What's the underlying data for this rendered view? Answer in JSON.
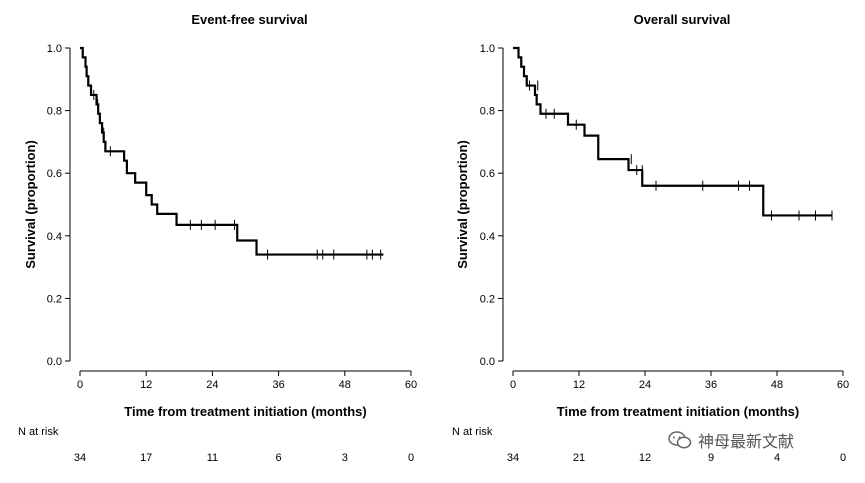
{
  "chart_data": [
    {
      "type": "line",
      "title": "Event-free survival",
      "xlabel": "Time from treatment initiation (months)",
      "ylabel": "Survival (proportion)",
      "xlim": [
        0,
        60
      ],
      "ylim": [
        0,
        1
      ],
      "xticks": [
        0,
        12,
        24,
        36,
        48,
        60
      ],
      "yticks": [
        "0.0",
        "0.2",
        "0.4",
        "0.6",
        "0.8",
        "1.0"
      ],
      "series": [
        {
          "name": "Event-free survival",
          "steps": [
            [
              0,
              1.0
            ],
            [
              0.5,
              0.97
            ],
            [
              1,
              0.94
            ],
            [
              1.2,
              0.91
            ],
            [
              1.5,
              0.88
            ],
            [
              2,
              0.85
            ],
            [
              3,
              0.82
            ],
            [
              3.3,
              0.79
            ],
            [
              3.6,
              0.76
            ],
            [
              4,
              0.73
            ],
            [
              4.3,
              0.7
            ],
            [
              4.6,
              0.67
            ],
            [
              8,
              0.64
            ],
            [
              8.5,
              0.6
            ],
            [
              10,
              0.57
            ],
            [
              12,
              0.53
            ],
            [
              13,
              0.5
            ],
            [
              14,
              0.47
            ],
            [
              17.5,
              0.435
            ],
            [
              28.5,
              0.385
            ],
            [
              32,
              0.34
            ],
            [
              55,
              0.34
            ]
          ],
          "censored": [
            [
              2.5,
              0.85
            ],
            [
              3.2,
              0.82
            ],
            [
              4.3,
              0.73
            ],
            [
              5.5,
              0.67
            ],
            [
              20,
              0.435
            ],
            [
              22,
              0.435
            ],
            [
              24.5,
              0.435
            ],
            [
              28,
              0.435
            ],
            [
              34,
              0.34
            ],
            [
              43,
              0.34
            ],
            [
              44,
              0.34
            ],
            [
              46,
              0.34
            ],
            [
              52,
              0.34
            ],
            [
              53,
              0.34
            ],
            [
              54.5,
              0.34
            ]
          ]
        }
      ],
      "risk_table": {
        "label": "N at risk",
        "times": [
          0,
          12,
          24,
          36,
          48,
          60
        ],
        "counts": [
          "34",
          "17",
          "11",
          "6",
          "3",
          "0"
        ]
      }
    },
    {
      "type": "line",
      "title": "Overall survival",
      "xlabel": "Time from treatment initiation (months)",
      "ylabel": "Survival (proportion)",
      "xlim": [
        0,
        60
      ],
      "ylim": [
        0,
        1
      ],
      "xticks": [
        0,
        12,
        24,
        36,
        48,
        60
      ],
      "yticks": [
        "0.0",
        "0.2",
        "0.4",
        "0.6",
        "0.8",
        "1.0"
      ],
      "series": [
        {
          "name": "Overall survival",
          "steps": [
            [
              0,
              1.0
            ],
            [
              1,
              0.97
            ],
            [
              1.5,
              0.94
            ],
            [
              2,
              0.91
            ],
            [
              2.5,
              0.88
            ],
            [
              4,
              0.85
            ],
            [
              4.3,
              0.82
            ],
            [
              5,
              0.79
            ],
            [
              10,
              0.755
            ],
            [
              13,
              0.72
            ],
            [
              15.5,
              0.645
            ],
            [
              21,
              0.61
            ],
            [
              23.5,
              0.56
            ],
            [
              45.5,
              0.465
            ],
            [
              58,
              0.465
            ]
          ],
          "censored": [
            [
              3,
              0.88
            ],
            [
              4.5,
              0.88
            ],
            [
              6,
              0.79
            ],
            [
              7.5,
              0.79
            ],
            [
              11.5,
              0.755
            ],
            [
              21.5,
              0.645
            ],
            [
              22.5,
              0.61
            ],
            [
              23.5,
              0.61
            ],
            [
              26,
              0.56
            ],
            [
              34.5,
              0.56
            ],
            [
              41,
              0.56
            ],
            [
              43,
              0.56
            ],
            [
              47,
              0.465
            ],
            [
              52,
              0.465
            ],
            [
              55,
              0.465
            ],
            [
              58,
              0.465
            ]
          ]
        }
      ],
      "risk_table": {
        "label": "N at risk",
        "times": [
          0,
          12,
          24,
          36,
          48,
          60
        ],
        "counts": [
          "34",
          "21",
          "12",
          "9",
          "4",
          "0"
        ]
      }
    }
  ],
  "watermark": {
    "text": "神母最新文献"
  }
}
